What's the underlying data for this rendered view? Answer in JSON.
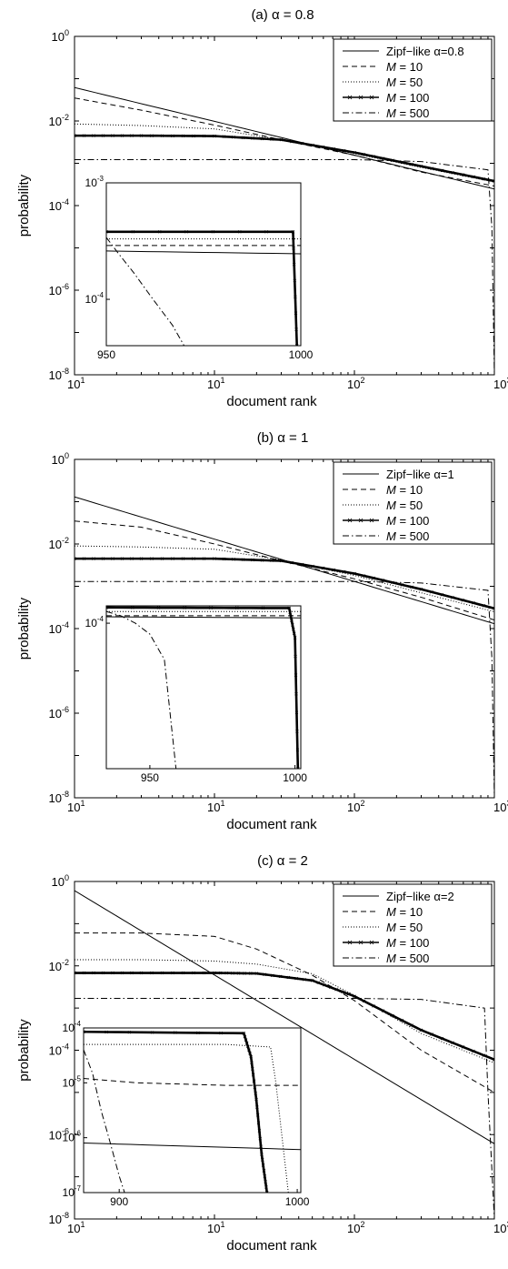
{
  "chart_data": [
    {
      "type": "line",
      "title": "(a) α = 0.8",
      "xlabel": "document rank",
      "ylabel": "probability",
      "xscale": "log",
      "yscale": "log",
      "xlim": [
        1,
        1000
      ],
      "ylim": [
        1e-08,
        1
      ],
      "x_ticks": [
        "1",
        "1",
        "2",
        "3"
      ],
      "y_ticks": [
        "-8",
        "-6",
        "-4",
        "-2",
        "0"
      ],
      "legend_position": "top-right",
      "series": [
        {
          "name": "Zipf−like α=0.8",
          "style": "solid",
          "x": [
            1,
            10,
            100,
            1000
          ],
          "y": [
            0.0617,
            0.0098,
            0.00155,
            0.000246
          ]
        },
        {
          "name": "M = 10",
          "style": "dashed",
          "x": [
            1,
            3,
            10,
            30,
            100,
            300,
            1000
          ],
          "y": [
            0.035,
            0.018,
            0.008,
            0.0036,
            0.00155,
            0.00062,
            0.00029
          ]
        },
        {
          "name": "M = 50",
          "style": "dotted",
          "x": [
            1,
            3,
            10,
            30,
            100,
            300,
            1000
          ],
          "y": [
            0.0085,
            0.0078,
            0.0065,
            0.0036,
            0.0017,
            0.0008,
            0.00036
          ]
        },
        {
          "name": "M = 100",
          "style": "solid-thick",
          "x": [
            1,
            3,
            10,
            30,
            100,
            300,
            1000
          ],
          "y": [
            0.0045,
            0.0045,
            0.0044,
            0.0036,
            0.0018,
            0.00085,
            0.00038
          ]
        },
        {
          "name": "M = 500",
          "style": "dashdot",
          "x": [
            1,
            10,
            100,
            300,
            900,
            960,
            1000
          ],
          "y": [
            0.00122,
            0.00122,
            0.00122,
            0.0011,
            0.0007,
            3e-05,
            1e-08
          ]
        }
      ],
      "inset": {
        "xlim": [
          950,
          1000
        ],
        "ylim": [
          4e-05,
          0.001
        ],
        "x_ticks": [
          "950",
          "1000"
        ],
        "y_ticks": [
          "-3",
          "-4"
        ],
        "series": [
          {
            "name": "Zipf−like α=0.8",
            "x": [
              950,
              1000
            ],
            "y": [
              0.00026,
              0.000246
            ]
          },
          {
            "name": "M = 10",
            "x": [
              950,
              1000
            ],
            "y": [
              0.00029,
              0.00029
            ]
          },
          {
            "name": "M = 50",
            "x": [
              950,
              1000
            ],
            "y": [
              0.00033,
              0.00033
            ]
          },
          {
            "name": "M = 100",
            "x": [
              950,
              998,
              999
            ],
            "y": [
              0.00038,
              0.00038,
              4e-05
            ]
          },
          {
            "name": "M = 500",
            "x": [
              950,
              953,
              957,
              962,
              967,
              970
            ],
            "y": [
              0.00034,
              0.00025,
              0.00017,
              0.0001,
              6e-05,
              4e-05
            ]
          }
        ]
      }
    },
    {
      "type": "line",
      "title": "(b) α = 1",
      "xlabel": "document rank",
      "ylabel": "probability",
      "xscale": "log",
      "yscale": "log",
      "xlim": [
        1,
        1000
      ],
      "ylim": [
        1e-08,
        1
      ],
      "x_ticks": [
        "1",
        "1",
        "2",
        "3"
      ],
      "y_ticks": [
        "-8",
        "-6",
        "-4",
        "-2",
        "0"
      ],
      "legend_position": "top-right",
      "series": [
        {
          "name": "Zipf−like α=1",
          "style": "solid",
          "x": [
            1,
            10,
            100,
            1000
          ],
          "y": [
            0.13,
            0.013,
            0.0013,
            0.00013
          ]
        },
        {
          "name": "M = 10",
          "style": "dashed",
          "x": [
            1,
            3,
            10,
            30,
            100,
            300,
            1000
          ],
          "y": [
            0.035,
            0.025,
            0.01,
            0.004,
            0.0015,
            0.00055,
            0.00016
          ]
        },
        {
          "name": "M = 50",
          "style": "dotted",
          "x": [
            1,
            3,
            10,
            30,
            100,
            300,
            1000
          ],
          "y": [
            0.009,
            0.0085,
            0.0075,
            0.0042,
            0.0018,
            0.0007,
            0.00025
          ]
        },
        {
          "name": "M = 100",
          "style": "solid-thick",
          "x": [
            1,
            3,
            10,
            30,
            100,
            300,
            1000
          ],
          "y": [
            0.0045,
            0.0045,
            0.0045,
            0.004,
            0.002,
            0.00085,
            0.0003
          ]
        },
        {
          "name": "M = 500",
          "style": "dashdot",
          "x": [
            1,
            10,
            100,
            300,
            900,
            960,
            1000
          ],
          "y": [
            0.0013,
            0.0013,
            0.0013,
            0.0012,
            0.0008,
            2e-05,
            1e-08
          ]
        }
      ],
      "inset": {
        "xlim": [
          935,
          1002
        ],
        "ylim": [
          1e-08,
          0.0003
        ],
        "x_ticks": [
          "950",
          "1000"
        ],
        "y_ticks": [
          "-4"
        ],
        "series": [
          {
            "name": "Zipf−like α=1",
            "x": [
              935,
              1002
            ],
            "y": [
              0.00015,
              0.00014
            ]
          },
          {
            "name": "M = 10",
            "x": [
              935,
              1002
            ],
            "y": [
              0.00016,
              0.00016
            ]
          },
          {
            "name": "M = 50",
            "x": [
              935,
              1002
            ],
            "y": [
              0.00021,
              0.00021
            ]
          },
          {
            "name": "M = 100",
            "x": [
              935,
              998,
              1000,
              1001
            ],
            "y": [
              0.00027,
              0.00026,
              4e-05,
              1e-08
            ]
          },
          {
            "name": "M = 500",
            "x": [
              935,
              940,
              945,
              950,
              955,
              959
            ],
            "y": [
              0.00021,
              0.00016,
              0.0001,
              5e-05,
              1e-05,
              1e-08
            ]
          }
        ]
      }
    },
    {
      "type": "line",
      "title": "(c) α = 2",
      "xlabel": "document rank",
      "ylabel": "probability",
      "xscale": "log",
      "yscale": "log",
      "xlim": [
        1,
        1000
      ],
      "ylim": [
        1e-08,
        1
      ],
      "x_ticks": [
        "1",
        "1",
        "2",
        "3"
      ],
      "y_ticks": [
        "-8",
        "-6",
        "-4",
        "-2",
        "0"
      ],
      "legend_position": "top-right",
      "series": [
        {
          "name": "Zipf−like α=2",
          "style": "solid",
          "x": [
            1,
            10,
            100,
            1000
          ],
          "y": [
            0.608,
            0.00608,
            6.08e-05,
            6.08e-07
          ]
        },
        {
          "name": "M = 10",
          "style": "dashed",
          "x": [
            1,
            3,
            10,
            20,
            50,
            100,
            300,
            1000
          ],
          "y": [
            0.06,
            0.06,
            0.05,
            0.025,
            0.006,
            0.0015,
            0.0001,
            1e-05
          ]
        },
        {
          "name": "M = 50",
          "style": "dotted",
          "x": [
            1,
            3,
            10,
            20,
            50,
            100,
            300,
            1000
          ],
          "y": [
            0.014,
            0.014,
            0.013,
            0.011,
            0.0065,
            0.002,
            0.00025,
            5e-05
          ]
        },
        {
          "name": "M = 100",
          "style": "solid-thick",
          "x": [
            1,
            3,
            10,
            20,
            50,
            100,
            300,
            1000
          ],
          "y": [
            0.0068,
            0.0068,
            0.0068,
            0.0066,
            0.0045,
            0.0019,
            0.0003,
            6e-05
          ]
        },
        {
          "name": "M = 500",
          "style": "dashdot",
          "x": [
            1,
            10,
            100,
            300,
            850,
            900,
            1000
          ],
          "y": [
            0.0017,
            0.0017,
            0.0017,
            0.0016,
            0.001,
            1e-05,
            1e-08
          ]
        }
      ],
      "inset": {
        "xlim": [
          880,
          1002
        ],
        "ylim": [
          1e-07,
          0.0001
        ],
        "x_ticks": [
          "900",
          "1000"
        ],
        "y_ticks": [
          "-4",
          "-5",
          "-6",
          "-7"
        ],
        "series": [
          {
            "name": "Zipf−like α=2",
            "x": [
              880,
              1002
            ],
            "y": [
              8e-07,
              6.08e-07
            ]
          },
          {
            "name": "M = 10",
            "x": [
              880,
              910,
              960,
              1002
            ],
            "y": [
              1.2e-05,
              1e-05,
              9e-06,
              9e-06
            ]
          },
          {
            "name": "M = 50",
            "x": [
              880,
              960,
              985,
              988,
              995
            ],
            "y": [
              5e-05,
              5e-05,
              4.5e-05,
              1e-05,
              1e-07
            ]
          },
          {
            "name": "M = 100",
            "x": [
              880,
              970,
              974,
              977,
              980,
              983
            ],
            "y": [
              8.5e-05,
              8e-05,
              3e-05,
              5e-06,
              5e-07,
              1e-07
            ]
          },
          {
            "name": "M = 500",
            "x": [
              880,
              885,
              890,
              895,
              900,
              903
            ],
            "y": [
              4e-05,
              1.5e-05,
              3e-06,
              8e-07,
              2e-07,
              1e-07
            ]
          }
        ]
      }
    }
  ]
}
